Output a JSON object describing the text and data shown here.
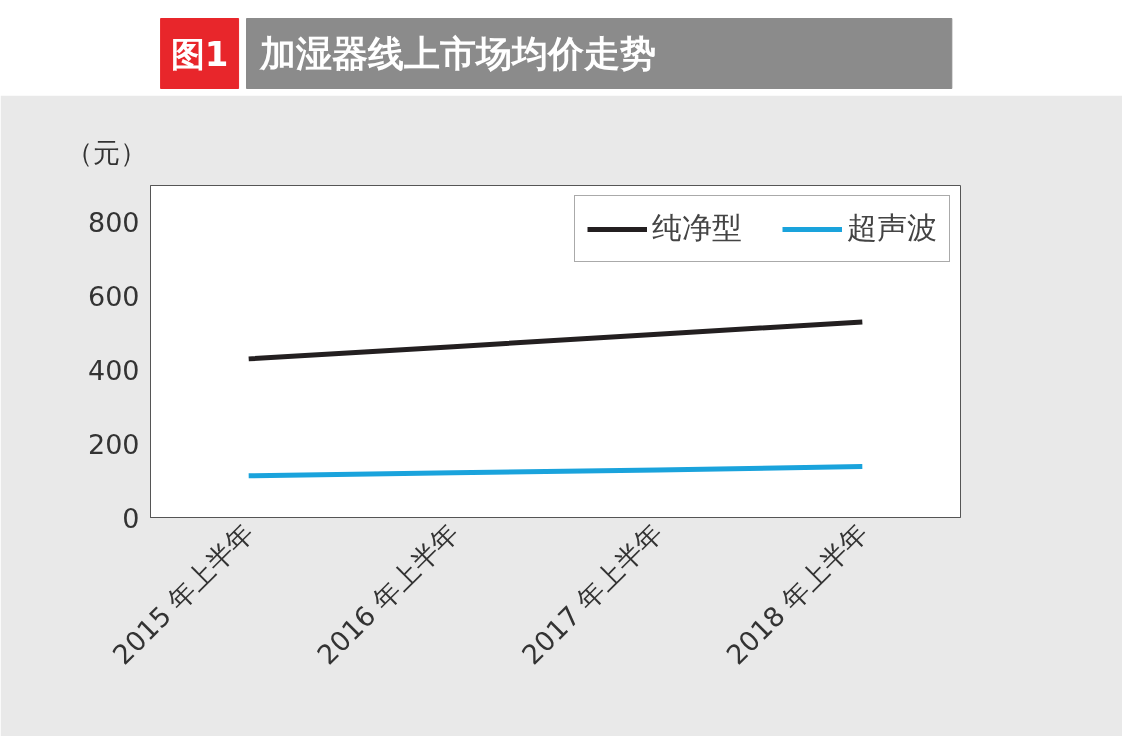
{
  "chart_data": {
    "type": "line",
    "title": "加湿器线上市场均价走势",
    "annotations": [
      "图1"
    ],
    "ylabel": "（元）",
    "categories": [
      "2015 年上半年",
      "2016 年上半年",
      "2017 年上半年",
      "2018 年上半年"
    ],
    "series": [
      {
        "name": "纯净型",
        "color": "#231f20",
        "values": [
          430,
          463,
          497,
          530
        ]
      },
      {
        "name": "超声波",
        "color": "#1aa3dc",
        "values": [
          113,
          121,
          129,
          138
        ]
      }
    ],
    "ylim": [
      0,
      900
    ],
    "yticks": [
      0,
      200,
      400,
      600,
      800
    ],
    "grid": false,
    "legend": "top right",
    "marker": "none",
    "line_style": "solid"
  }
}
